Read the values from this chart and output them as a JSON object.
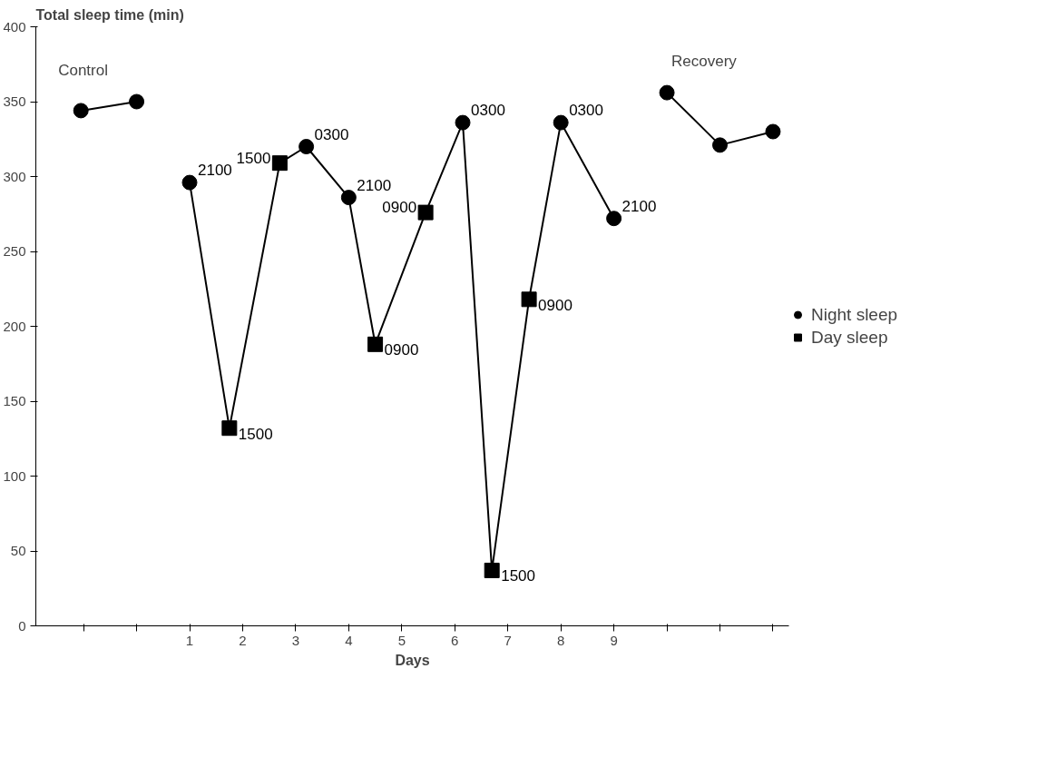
{
  "chart_data": {
    "type": "line",
    "xlabel": "Days",
    "ylabel": "Total sleep time (min)",
    "xlim": [
      -1.9,
      12.3
    ],
    "ylim": [
      0,
      400
    ],
    "xticks": [
      {
        "value": -1,
        "label": null
      },
      {
        "value": 0,
        "label": null
      },
      1,
      2,
      3,
      4,
      5,
      6,
      7,
      8,
      9,
      {
        "value": 10,
        "label": null
      },
      {
        "value": 11,
        "label": null
      },
      {
        "value": 12,
        "label": null
      }
    ],
    "yticks": [
      0,
      50,
      100,
      150,
      200,
      250,
      300,
      350,
      400
    ],
    "grid": false,
    "legend": "right",
    "marker": "none",
    "line_style": "solid",
    "series": [
      {
        "color": "#000000",
        "x": [
          -1.05,
          0
        ],
        "values": [
          344,
          350
        ]
      },
      {
        "color": "#000000",
        "x": [
          1,
          1.75,
          2.7,
          3.2,
          4,
          4.5,
          5.45,
          6.15,
          6.7,
          7.4,
          8,
          9
        ],
        "values": [
          296,
          132,
          309,
          320,
          286,
          188,
          276,
          336,
          37,
          218,
          336,
          272
        ]
      },
      {
        "color": "#000000",
        "x": [
          10,
          11,
          12
        ],
        "values": [
          356,
          321,
          330
        ]
      },
      {
        "type": "scatter",
        "name": "Night sleep",
        "marker": "circle",
        "color": "#000000",
        "x": [
          -1.05,
          0,
          1,
          3.2,
          4,
          6.15,
          8,
          9,
          10,
          11,
          12
        ],
        "values": [
          344,
          350,
          296,
          320,
          286,
          336,
          336,
          272,
          356,
          321,
          330
        ]
      },
      {
        "type": "scatter",
        "name": "Day sleep",
        "marker": "square",
        "color": "#000000",
        "x": [
          1.75,
          2.7,
          4.5,
          5.45,
          6.7,
          7.4
        ],
        "values": [
          132,
          309,
          188,
          276,
          37,
          218
        ]
      }
    ],
    "annotations": [
      "Control",
      "Recovery",
      {
        "text": "2100",
        "x": 1,
        "y": 296
      },
      {
        "text": "1500",
        "x": 1.75,
        "y": 132
      },
      {
        "text": "1500",
        "x": 2.7,
        "y": 309
      },
      {
        "text": "0300",
        "x": 3.2,
        "y": 320
      },
      {
        "text": "2100",
        "x": 4,
        "y": 286
      },
      {
        "text": "0900",
        "x": 4.5,
        "y": 188
      },
      {
        "text": "0900",
        "x": 5.45,
        "y": 276
      },
      {
        "text": "0300",
        "x": 6.15,
        "y": 336
      },
      {
        "text": "1500",
        "x": 6.7,
        "y": 37
      },
      {
        "text": "0900",
        "x": 7.4,
        "y": 218
      },
      {
        "text": "0300",
        "x": 8,
        "y": 336
      },
      {
        "text": "2100",
        "x": 9,
        "y": 272
      }
    ]
  }
}
